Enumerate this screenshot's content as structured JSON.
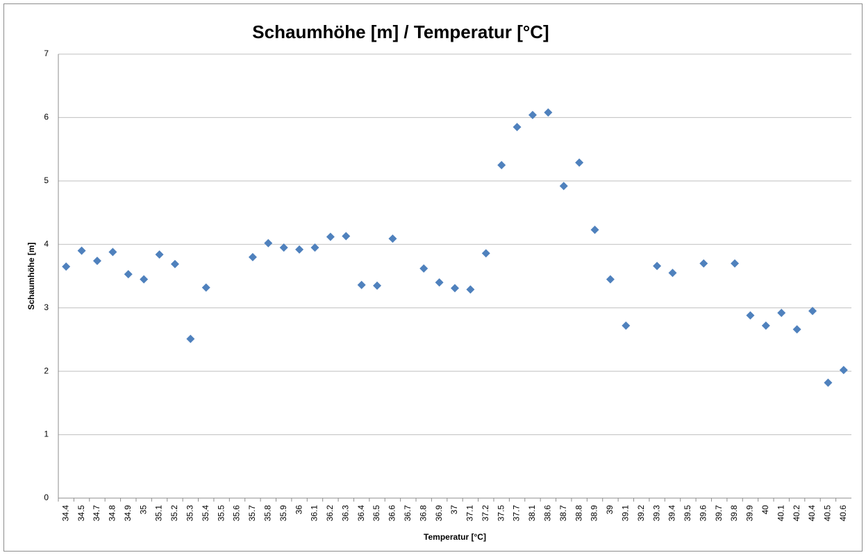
{
  "chart_data": {
    "type": "line",
    "marker": "diamond",
    "show_line": false,
    "title": "Schaumhöhe [m] / Temperatur [°C]",
    "x_label": "Temperatur [°C]",
    "y_label": "Schaumhöhe [m]",
    "categories": [
      "34.4",
      "34.5",
      "34.7",
      "34.8",
      "34.9",
      "35",
      "35.1",
      "35.2",
      "35.3",
      "35.4",
      "35.5",
      "35.6",
      "35.7",
      "35.8",
      "35.9",
      "36",
      "36.1",
      "36.2",
      "36.3",
      "36.4",
      "36.5",
      "36.6",
      "36.7",
      "36.8",
      "36.9",
      "37",
      "37.1",
      "37.2",
      "37.5",
      "37.7",
      "38.1",
      "38.6",
      "38.7",
      "38.8",
      "38.9",
      "39",
      "39.1",
      "39.2",
      "39.3",
      "39.4",
      "39.5",
      "39.6",
      "39.7",
      "39.8",
      "39.9",
      "40",
      "40.1",
      "40.2",
      "40.4",
      "40.5",
      "40.6"
    ],
    "series": [
      {
        "name": "Schaumhöhe [m]",
        "color": "#4f81bd",
        "values": [
          3.65,
          3.9,
          3.74,
          3.88,
          3.53,
          3.45,
          3.84,
          3.69,
          2.51,
          3.32,
          null,
          null,
          3.8,
          4.02,
          3.95,
          3.92,
          3.95,
          4.12,
          4.13,
          3.36,
          3.35,
          4.09,
          null,
          3.62,
          3.4,
          3.31,
          3.29,
          3.86,
          5.25,
          5.85,
          6.04,
          6.08,
          4.92,
          5.29,
          4.23,
          3.45,
          2.72,
          null,
          3.66,
          3.55,
          null,
          3.7,
          null,
          3.7,
          2.88,
          2.72,
          2.92,
          2.66,
          2.95,
          1.82,
          2.02
        ]
      }
    ],
    "ylim": [
      0,
      7
    ],
    "yticks": [
      0,
      1,
      2,
      3,
      4,
      5,
      6,
      7
    ],
    "grid": true
  }
}
